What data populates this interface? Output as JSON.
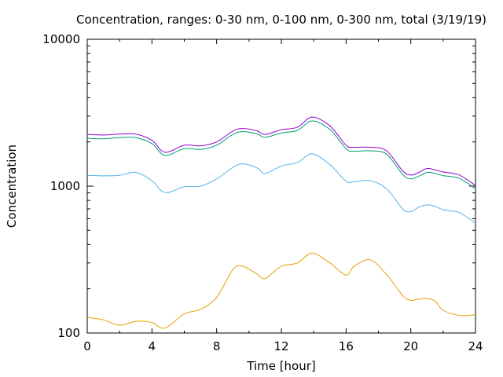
{
  "chart_data": {
    "type": "line",
    "title": "Concentration, ranges: 0-30 nm, 0-100 nm, 0-300 nm, total (3/19/19)",
    "xlabel": "Time [hour]",
    "ylabel": "Concentration",
    "xlim": [
      0,
      24
    ],
    "ylim": [
      100,
      10000
    ],
    "yscale": "log",
    "grid": false,
    "legend": "none",
    "xticks": [
      0,
      4,
      8,
      12,
      16,
      20,
      24
    ],
    "xtick_labels": [
      "0",
      "4",
      "8",
      "12",
      "16",
      "20",
      "24"
    ],
    "yticks": [
      100,
      1000,
      10000
    ],
    "ytick_labels": [
      "100",
      "1000",
      "10000"
    ],
    "x": [
      0,
      1,
      2,
      3,
      4,
      4.8,
      6,
      7,
      8,
      9,
      9.6,
      10.5,
      11,
      12,
      13,
      13.9,
      15,
      16,
      16.5,
      17.5,
      18.5,
      19.5,
      20,
      20.5,
      21,
      21.5,
      22,
      23,
      24
    ],
    "series": [
      {
        "color": "#e69f00",
        "values": [
          128,
          123,
          113,
          120,
          118,
          108,
          135,
          145,
          175,
          270,
          285,
          252,
          235,
          285,
          300,
          350,
          300,
          248,
          285,
          315,
          250,
          180,
          167,
          170,
          172,
          165,
          143,
          132,
          133
        ]
      },
      {
        "color": "#56b4e9",
        "values": [
          1185,
          1175,
          1185,
          1240,
          1090,
          905,
          990,
          1000,
          1120,
          1340,
          1420,
          1330,
          1220,
          1370,
          1450,
          1660,
          1400,
          1080,
          1070,
          1090,
          960,
          700,
          670,
          720,
          745,
          730,
          690,
          660,
          560
        ]
      },
      {
        "color": "#009e73",
        "values": [
          2120,
          2100,
          2140,
          2140,
          1950,
          1620,
          1800,
          1780,
          1900,
          2250,
          2350,
          2270,
          2150,
          2300,
          2400,
          2780,
          2430,
          1800,
          1730,
          1740,
          1650,
          1200,
          1120,
          1170,
          1240,
          1220,
          1180,
          1130,
          960
        ]
      },
      {
        "color": "#9400d3",
        "values": [
          2250,
          2230,
          2260,
          2260,
          2050,
          1700,
          1900,
          1880,
          2000,
          2370,
          2470,
          2380,
          2250,
          2420,
          2520,
          2950,
          2570,
          1900,
          1840,
          1840,
          1740,
          1270,
          1190,
          1240,
          1320,
          1290,
          1250,
          1190,
          1010
        ]
      }
    ]
  }
}
